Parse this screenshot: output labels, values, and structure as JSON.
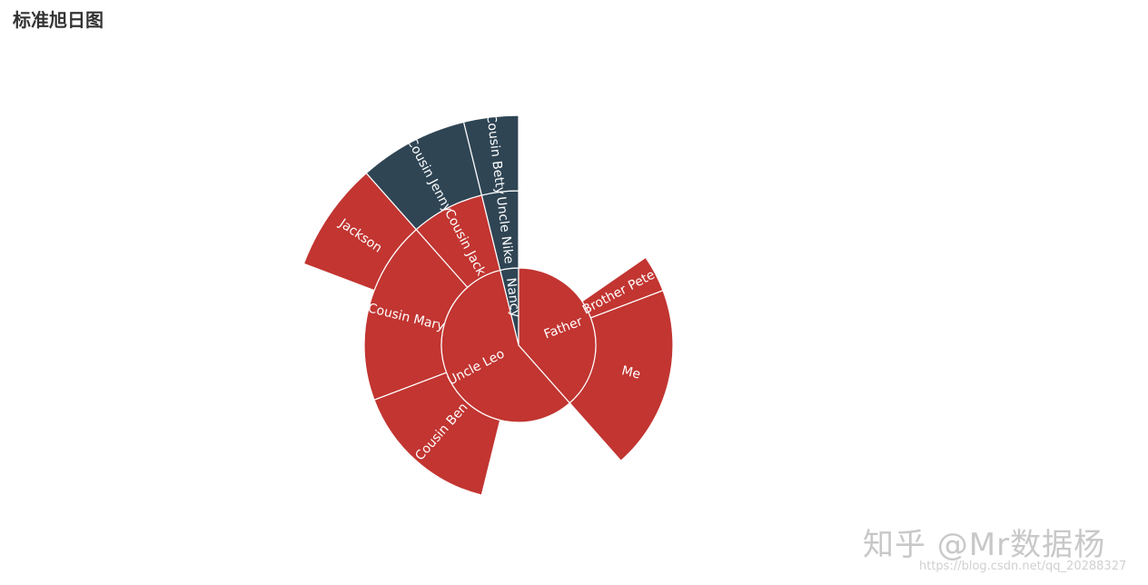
{
  "title": "标准旭日图",
  "watermark": "知乎 @Mr数据杨",
  "watermark_url": "https://blog.csdn.net/qq_20288327",
  "colors": {
    "red": "#c23531",
    "navy": "#2f4554",
    "stroke": "#ffffff",
    "label": "#ffffff"
  },
  "chart_data": {
    "type": "sunburst",
    "title": "标准旭日图",
    "start_angle_deg": 90,
    "children": [
      {
        "name": "Nancy",
        "value": 1,
        "color": "#2f4554",
        "children": [
          {
            "name": "Uncle Nike",
            "value": 1,
            "children": [
              {
                "name": "Cousin Betty",
                "value": 1
              },
              {
                "name": "Cousin Jenny",
                "value": 2
              }
            ]
          }
        ]
      },
      {
        "name": "Uncle Leo",
        "value": 15,
        "color": "#c23531",
        "children": [
          {
            "name": "Cousin Jack",
            "value": 2
          },
          {
            "name": "Cousin Mary",
            "value": 5,
            "children": [
              {
                "name": "Jackson",
                "value": 2
              }
            ]
          },
          {
            "name": "Cousin Ben",
            "value": 4
          }
        ]
      },
      {
        "name": "Father",
        "value": 10,
        "color": "#c23531",
        "children": [
          {
            "name": "Me",
            "value": 5
          },
          {
            "name": "Brother Peter",
            "value": 1
          }
        ]
      }
    ]
  }
}
